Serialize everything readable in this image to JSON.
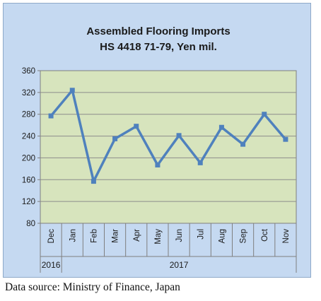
{
  "chart_data": {
    "type": "line",
    "title": "Assembled Flooring Imports",
    "subtitle": "HS 4418 71-79, Yen mil.",
    "categories": [
      "Dec",
      "Jan",
      "Feb",
      "Mar",
      "Apr",
      "May",
      "Jun",
      "Jul",
      "Aug",
      "Sep",
      "Oct",
      "Nov"
    ],
    "values": [
      277,
      324,
      157,
      235,
      258,
      187,
      241,
      191,
      256,
      225,
      280,
      234
    ],
    "year_groups": [
      {
        "label": "2016",
        "from": 0,
        "to": 0
      },
      {
        "label": "2017",
        "from": 1,
        "to": 11
      }
    ],
    "ylim": [
      80,
      360
    ],
    "yticks": [
      80,
      120,
      160,
      200,
      240,
      280,
      320,
      360
    ],
    "xlabel": "",
    "ylabel": "",
    "grid": true,
    "line_color": "#4f81bd",
    "plot_background": "#d7e4bd",
    "frame_background": "#c5d9f1"
  },
  "source_note": "Data source: Ministry of Finance, Japan"
}
